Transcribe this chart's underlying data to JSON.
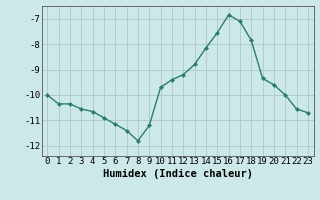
{
  "x": [
    0,
    1,
    2,
    3,
    4,
    5,
    6,
    7,
    8,
    9,
    10,
    11,
    12,
    13,
    14,
    15,
    16,
    17,
    18,
    19,
    20,
    21,
    22,
    23
  ],
  "y": [
    -10.0,
    -10.35,
    -10.35,
    -10.55,
    -10.65,
    -10.9,
    -11.15,
    -11.4,
    -11.8,
    -11.2,
    -9.7,
    -9.4,
    -9.2,
    -8.8,
    -8.15,
    -7.55,
    -6.85,
    -7.1,
    -7.85,
    -9.35,
    -9.6,
    -10.0,
    -10.55,
    -10.7
  ],
  "line_color": "#2d7d6e",
  "marker": "D",
  "marker_size": 2.0,
  "line_width": 1.0,
  "bg_color": "#cce8e8",
  "grid_color": "#b0cccc",
  "xlabel": "Humidex (Indice chaleur)",
  "tick_fontsize": 6.5,
  "xlabel_fontsize": 7.5,
  "xlim": [
    -0.5,
    23.5
  ],
  "ylim": [
    -12.4,
    -6.5
  ],
  "yticks": [
    -12,
    -11,
    -10,
    -9,
    -8,
    -7
  ],
  "xticks": [
    0,
    1,
    2,
    3,
    4,
    5,
    6,
    7,
    8,
    9,
    10,
    11,
    12,
    13,
    14,
    15,
    16,
    17,
    18,
    19,
    20,
    21,
    22,
    23
  ]
}
